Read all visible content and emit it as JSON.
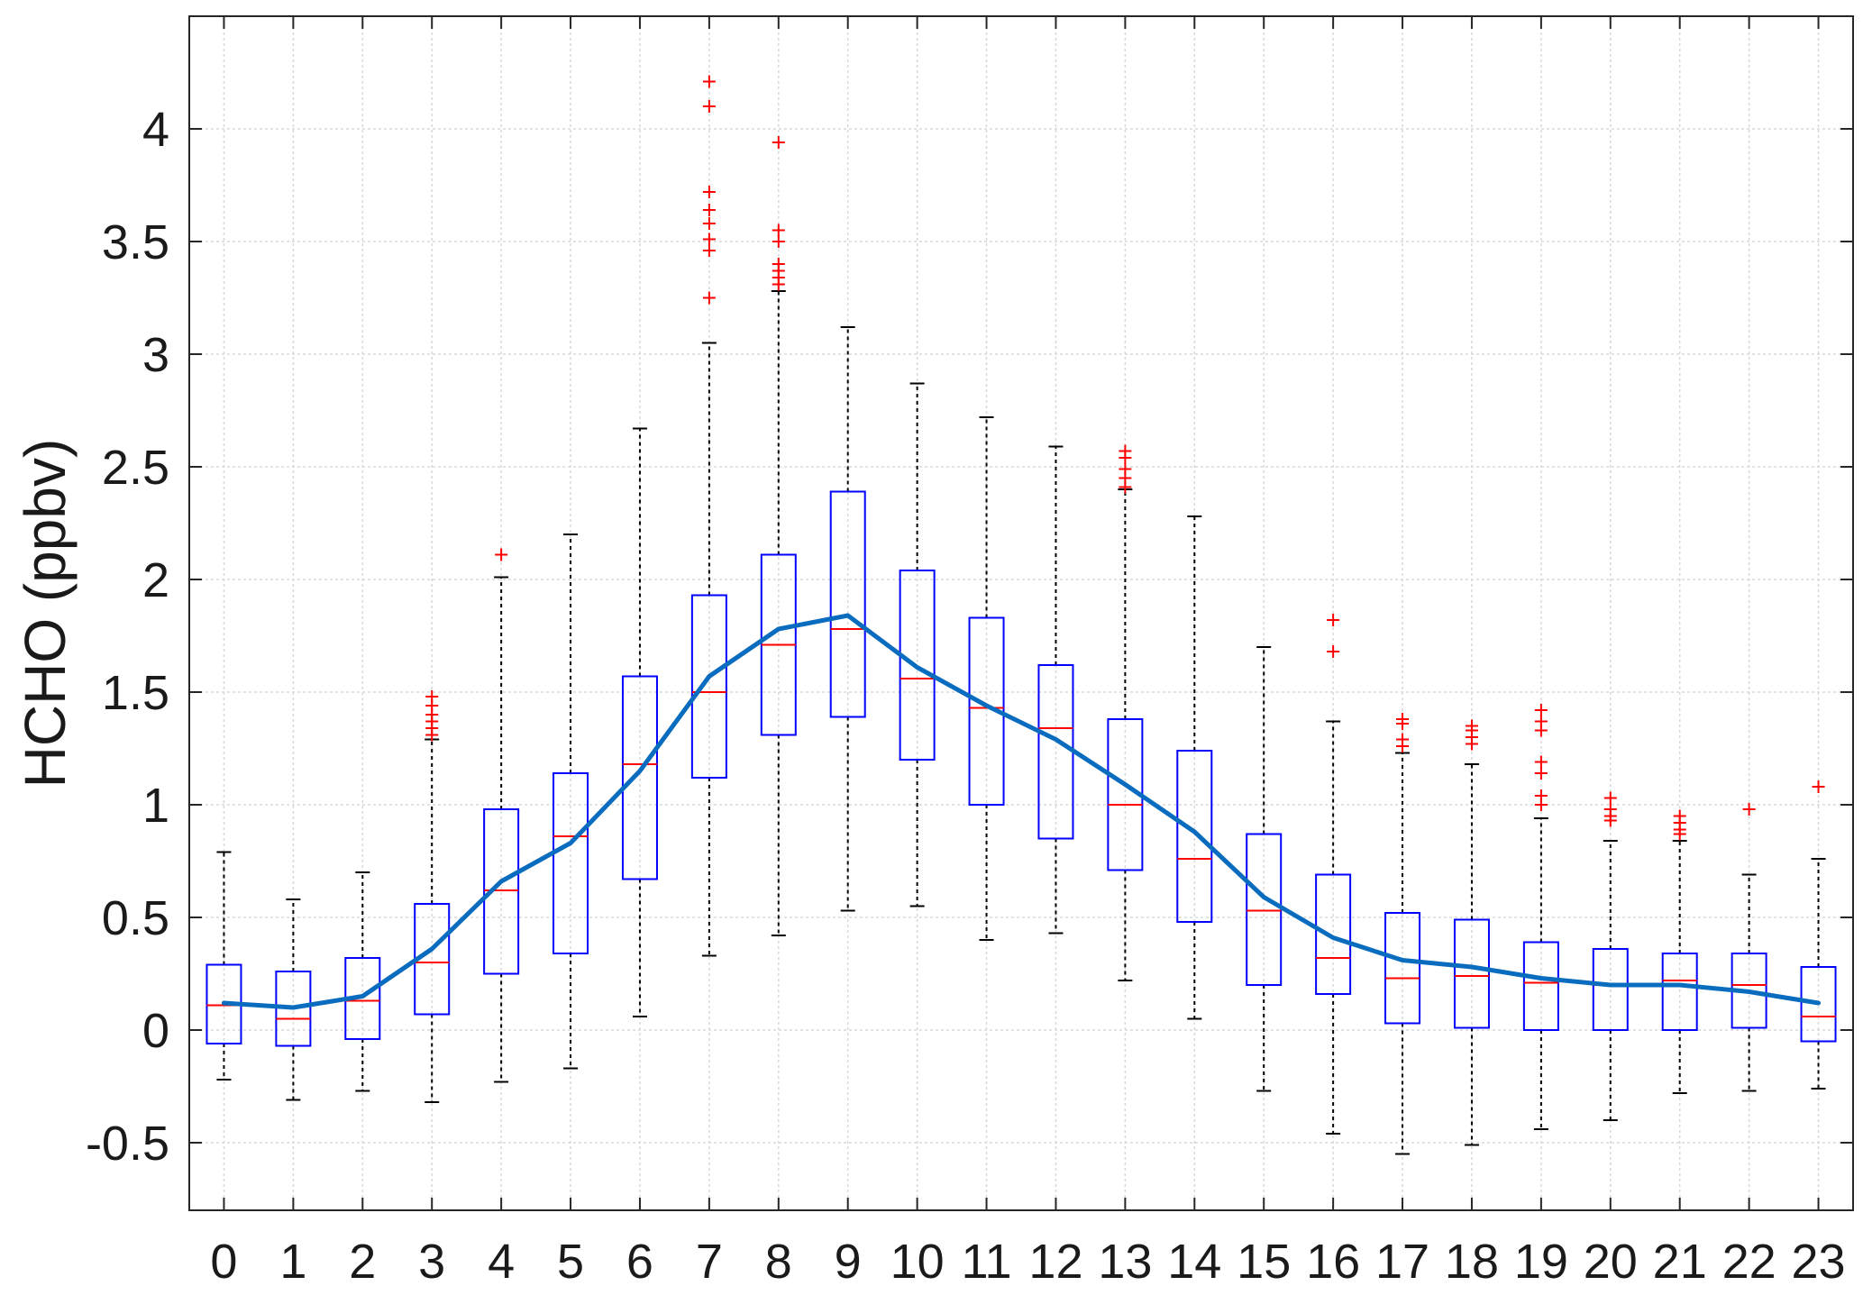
{
  "chart_data": {
    "type": "box",
    "title": "",
    "xlabel": "",
    "ylabel": "HCHO (ppbv)",
    "xlim": [
      -0.5,
      23.5
    ],
    "ylim": [
      -0.8,
      4.5
    ],
    "grid": true,
    "x_ticks": [
      "0",
      "1",
      "2",
      "3",
      "4",
      "5",
      "6",
      "7",
      "8",
      "9",
      "10",
      "11",
      "12",
      "13",
      "14",
      "15",
      "16",
      "17",
      "18",
      "19",
      "20",
      "21",
      "22",
      "23"
    ],
    "y_ticks": [
      -0.5,
      0,
      0.5,
      1,
      1.5,
      2,
      2.5,
      3,
      3.5,
      4
    ],
    "y_tick_labels": [
      "-0.5",
      "0",
      "0.5",
      "1",
      "1.5",
      "2",
      "2.5",
      "3",
      "3.5",
      "4"
    ],
    "boxes": [
      {
        "x": 0,
        "whisker_low": -0.22,
        "q1": -0.06,
        "median": 0.11,
        "q3": 0.29,
        "whisker_high": 0.79,
        "outliers": []
      },
      {
        "x": 1,
        "whisker_low": -0.31,
        "q1": -0.07,
        "median": 0.05,
        "q3": 0.26,
        "whisker_high": 0.58,
        "outliers": []
      },
      {
        "x": 2,
        "whisker_low": -0.27,
        "q1": -0.04,
        "median": 0.13,
        "q3": 0.32,
        "whisker_high": 0.7,
        "outliers": []
      },
      {
        "x": 3,
        "whisker_low": -0.32,
        "q1": 0.07,
        "median": 0.3,
        "q3": 0.56,
        "whisker_high": 1.29,
        "outliers": [
          1.31,
          1.34,
          1.37,
          1.4,
          1.44,
          1.48
        ]
      },
      {
        "x": 4,
        "whisker_low": -0.23,
        "q1": 0.25,
        "median": 0.62,
        "q3": 0.98,
        "whisker_high": 2.01,
        "outliers": [
          2.11
        ]
      },
      {
        "x": 5,
        "whisker_low": -0.17,
        "q1": 0.34,
        "median": 0.86,
        "q3": 1.14,
        "whisker_high": 2.2,
        "outliers": []
      },
      {
        "x": 6,
        "whisker_low": 0.06,
        "q1": 0.67,
        "median": 1.18,
        "q3": 1.57,
        "whisker_high": 2.67,
        "outliers": []
      },
      {
        "x": 7,
        "whisker_low": 0.33,
        "q1": 1.12,
        "median": 1.5,
        "q3": 1.93,
        "whisker_high": 3.05,
        "outliers": [
          3.25,
          3.46,
          3.51,
          3.58,
          3.64,
          3.72,
          4.1,
          4.21
        ]
      },
      {
        "x": 8,
        "whisker_low": 0.42,
        "q1": 1.31,
        "median": 1.71,
        "q3": 2.11,
        "whisker_high": 3.28,
        "outliers": [
          3.31,
          3.34,
          3.37,
          3.4,
          3.5,
          3.55,
          3.94
        ]
      },
      {
        "x": 9,
        "whisker_low": 0.53,
        "q1": 1.39,
        "median": 1.78,
        "q3": 2.39,
        "whisker_high": 3.12,
        "outliers": []
      },
      {
        "x": 10,
        "whisker_low": 0.55,
        "q1": 1.2,
        "median": 1.56,
        "q3": 2.04,
        "whisker_high": 2.87,
        "outliers": []
      },
      {
        "x": 11,
        "whisker_low": 0.4,
        "q1": 1.0,
        "median": 1.43,
        "q3": 1.83,
        "whisker_high": 2.72,
        "outliers": []
      },
      {
        "x": 12,
        "whisker_low": 0.43,
        "q1": 0.85,
        "median": 1.34,
        "q3": 1.62,
        "whisker_high": 2.59,
        "outliers": []
      },
      {
        "x": 13,
        "whisker_low": 0.22,
        "q1": 0.71,
        "median": 1.0,
        "q3": 1.38,
        "whisker_high": 2.4,
        "outliers": [
          2.41,
          2.45,
          2.49,
          2.54,
          2.57
        ]
      },
      {
        "x": 14,
        "whisker_low": 0.05,
        "q1": 0.48,
        "median": 0.76,
        "q3": 1.24,
        "whisker_high": 2.28,
        "outliers": []
      },
      {
        "x": 15,
        "whisker_low": -0.27,
        "q1": 0.2,
        "median": 0.53,
        "q3": 0.87,
        "whisker_high": 1.7,
        "outliers": []
      },
      {
        "x": 16,
        "whisker_low": -0.46,
        "q1": 0.16,
        "median": 0.32,
        "q3": 0.69,
        "whisker_high": 1.37,
        "outliers": [
          1.68,
          1.82
        ]
      },
      {
        "x": 17,
        "whisker_low": -0.55,
        "q1": 0.03,
        "median": 0.23,
        "q3": 0.52,
        "whisker_high": 1.23,
        "outliers": [
          1.26,
          1.29,
          1.36,
          1.38
        ]
      },
      {
        "x": 18,
        "whisker_low": -0.51,
        "q1": 0.01,
        "median": 0.24,
        "q3": 0.49,
        "whisker_high": 1.18,
        "outliers": [
          1.27,
          1.3,
          1.33,
          1.35
        ]
      },
      {
        "x": 19,
        "whisker_low": -0.44,
        "q1": 0.0,
        "median": 0.21,
        "q3": 0.39,
        "whisker_high": 0.94,
        "outliers": [
          1.0,
          1.04,
          1.14,
          1.19,
          1.33,
          1.37,
          1.42
        ]
      },
      {
        "x": 20,
        "whisker_low": -0.4,
        "q1": 0.0,
        "median": 0.2,
        "q3": 0.36,
        "whisker_high": 0.84,
        "outliers": [
          0.93,
          0.95,
          0.98,
          1.03
        ]
      },
      {
        "x": 21,
        "whisker_low": -0.28,
        "q1": 0.0,
        "median": 0.22,
        "q3": 0.34,
        "whisker_high": 0.84,
        "outliers": [
          0.87,
          0.89,
          0.92,
          0.95
        ]
      },
      {
        "x": 22,
        "whisker_low": -0.27,
        "q1": 0.01,
        "median": 0.2,
        "q3": 0.34,
        "whisker_high": 0.69,
        "outliers": [
          0.98
        ]
      },
      {
        "x": 23,
        "whisker_low": -0.26,
        "q1": -0.05,
        "median": 0.06,
        "q3": 0.28,
        "whisker_high": 0.76,
        "outliers": [
          1.08
        ]
      }
    ],
    "series": [
      {
        "values": [
          0.12,
          0.1,
          0.15,
          0.36,
          0.66,
          0.83,
          1.15,
          1.57,
          1.78,
          1.84,
          1.61,
          1.44,
          1.29,
          1.09,
          0.88,
          0.59,
          0.41,
          0.31,
          0.28,
          0.23,
          0.2,
          0.2,
          0.17,
          0.12
        ]
      }
    ],
    "colors": {
      "box": "#0000ff",
      "median": "#ff0000",
      "outlier": "#ff0000",
      "whisker": "#000000",
      "mean_line": "#0a6cbe",
      "grid": "#d9d9d9",
      "axis": "#262626"
    }
  }
}
